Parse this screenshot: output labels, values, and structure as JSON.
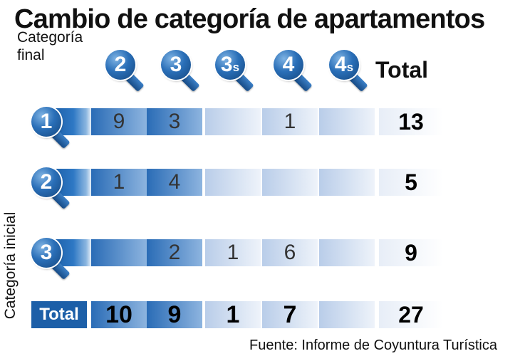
{
  "title": "Cambio de categoría de apartamentos",
  "source": "Fuente: Informe de Coyuntura Turística",
  "chart_data": {
    "type": "table",
    "title": "Cambio de categoría de apartamentos",
    "col_axis_label": "Categoría final",
    "row_axis_label": "Categoría inicial",
    "columns": [
      {
        "main": "2",
        "sub": ""
      },
      {
        "main": "3",
        "sub": ""
      },
      {
        "main": "3",
        "sub": "s"
      },
      {
        "main": "4",
        "sub": ""
      },
      {
        "main": "4",
        "sub": "s"
      }
    ],
    "total_header": "Total",
    "rows": [
      {
        "label": "1",
        "values": [
          "9",
          "3",
          "",
          "1",
          ""
        ],
        "total": "13"
      },
      {
        "label": "2",
        "values": [
          "1",
          "4",
          "",
          "",
          ""
        ],
        "total": "5"
      },
      {
        "label": "3",
        "values": [
          "",
          "2",
          "1",
          "6",
          ""
        ],
        "total": "9"
      }
    ],
    "total_row": {
      "label": "Total",
      "values": [
        "10",
        "9",
        "1",
        "7",
        ""
      ],
      "total": "27"
    },
    "colors": {
      "accent": "#1c5fa8",
      "cell_dark": "#2a6cb6",
      "cell_light": "#e8eef7"
    }
  }
}
